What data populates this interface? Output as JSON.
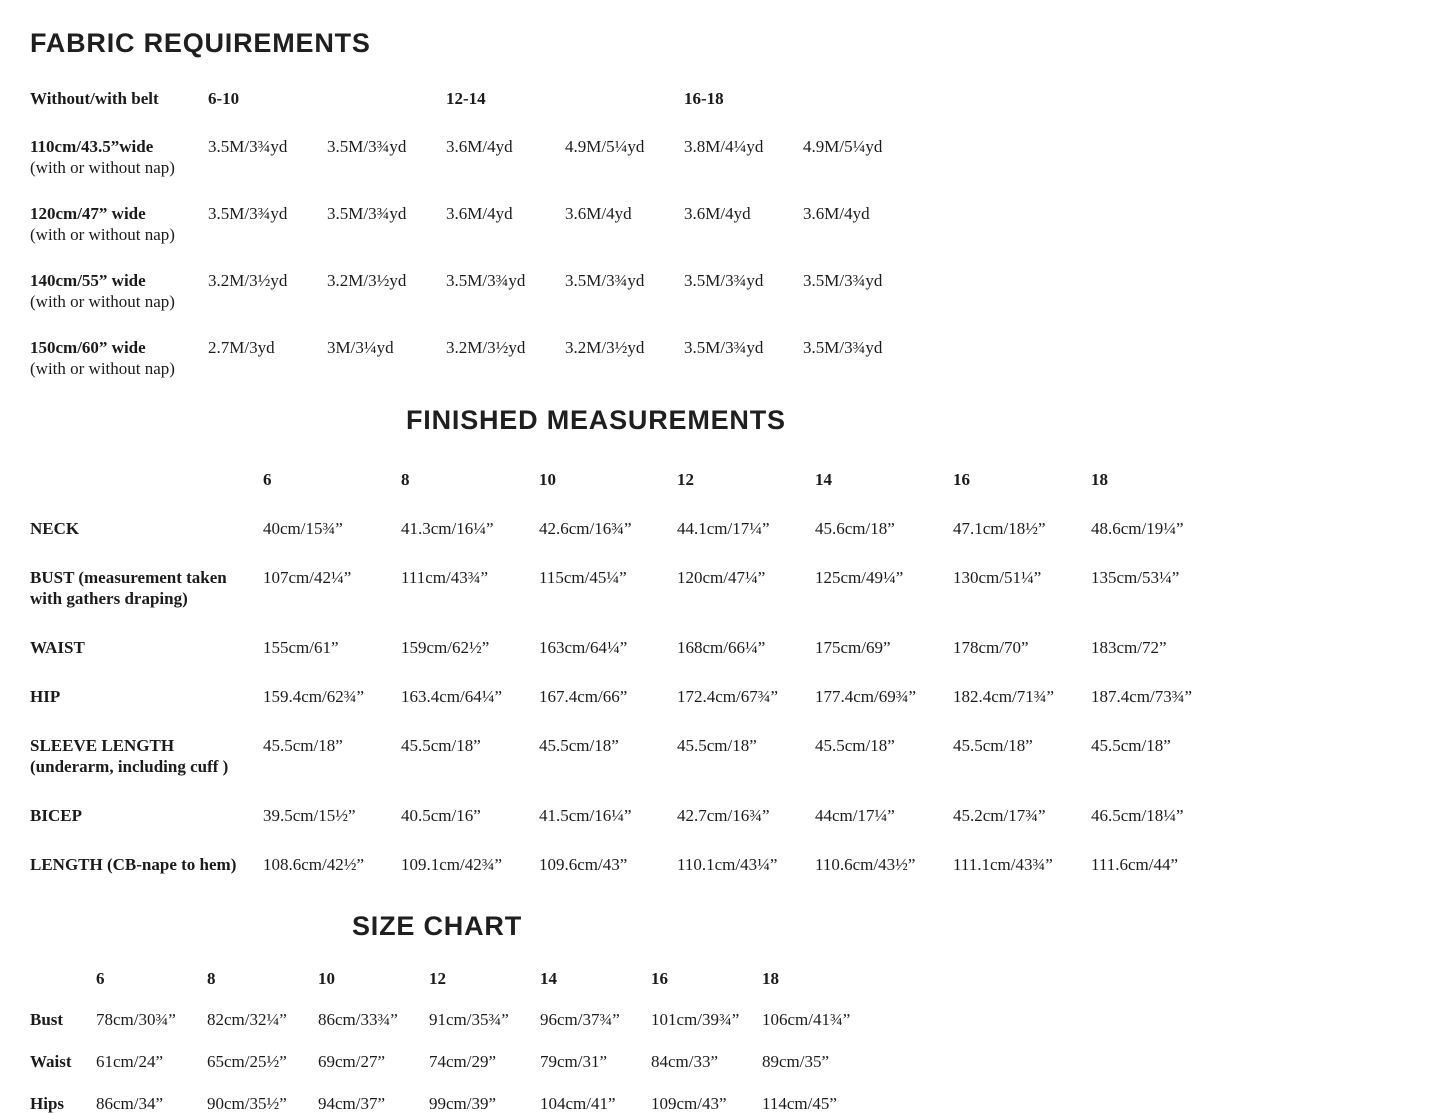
{
  "fabric": {
    "title": "FABRIC REQUIREMENTS",
    "header_label": "Without/with belt",
    "size_groups": [
      "6-10",
      "12-14",
      "16-18"
    ],
    "rows": [
      {
        "label": "110cm/43.5”wide",
        "sublabel": "(with or without nap)",
        "values": [
          "3.5M/3¾yd",
          "3.5M/3¾yd",
          "3.6M/4yd",
          "4.9M/5¼yd",
          "3.8M/4¼yd",
          "4.9M/5¼yd"
        ]
      },
      {
        "label": "120cm/47” wide",
        "sublabel": "(with or without nap)",
        "values": [
          "3.5M/3¾yd",
          "3.5M/3¾yd",
          "3.6M/4yd",
          "3.6M/4yd",
          "3.6M/4yd",
          "3.6M/4yd"
        ]
      },
      {
        "label": "140cm/55” wide",
        "sublabel": "(with or without nap)",
        "values": [
          "3.2M/3½yd",
          "3.2M/3½yd",
          "3.5M/3¾yd",
          "3.5M/3¾yd",
          "3.5M/3¾yd",
          "3.5M/3¾yd"
        ]
      },
      {
        "label": "150cm/60” wide",
        "sublabel": "(with or without nap)",
        "values": [
          "2.7M/3yd",
          "3M/3¼yd",
          "3.2M/3½yd",
          "3.2M/3½yd",
          "3.5M/3¾yd",
          "3.5M/3¾yd"
        ]
      }
    ]
  },
  "finished": {
    "title": "FINISHED MEASUREMENTS",
    "sizes": [
      "6",
      "8",
      "10",
      "12",
      "14",
      "16",
      "18"
    ],
    "rows": [
      {
        "label": "NECK",
        "values": [
          "40cm/15¾”",
          "41.3cm/16¼”",
          "42.6cm/16¾”",
          "44.1cm/17¼”",
          "45.6cm/18”",
          "47.1cm/18½”",
          "48.6cm/19¼”"
        ]
      },
      {
        "label": "BUST (measurement taken\nwith gathers draping)",
        "values": [
          "107cm/42¼”",
          "111cm/43¾”",
          "115cm/45¼”",
          "120cm/47¼”",
          "125cm/49¼”",
          "130cm/51¼”",
          "135cm/53¼”"
        ]
      },
      {
        "label": "WAIST",
        "values": [
          "155cm/61”",
          "159cm/62½”",
          "163cm/64¼”",
          "168cm/66¼”",
          "175cm/69”",
          "178cm/70”",
          "183cm/72”"
        ]
      },
      {
        "label": "HIP",
        "values": [
          "159.4cm/62¾”",
          "163.4cm/64¼”",
          "167.4cm/66”",
          "172.4cm/67¾”",
          "177.4cm/69¾”",
          "182.4cm/71¾”",
          "187.4cm/73¾”"
        ]
      },
      {
        "label": "SLEEVE LENGTH\n(underarm, including cuff )",
        "values": [
          "45.5cm/18”",
          "45.5cm/18”",
          "45.5cm/18”",
          "45.5cm/18”",
          "45.5cm/18”",
          "45.5cm/18”",
          "45.5cm/18”"
        ]
      },
      {
        "label": "BICEP",
        "values": [
          "39.5cm/15½”",
          "40.5cm/16”",
          "41.5cm/16¼”",
          "42.7cm/16¾”",
          "44cm/17¼”",
          "45.2cm/17¾”",
          "46.5cm/18¼”"
        ]
      },
      {
        "label": "LENGTH (CB-nape to hem)",
        "values": [
          "108.6cm/42½”",
          "109.1cm/42¾”",
          "109.6cm/43”",
          "110.1cm/43¼”",
          "110.6cm/43½”",
          "111.1cm/43¾”",
          "111.6cm/44”"
        ]
      }
    ]
  },
  "sizechart": {
    "title": "SIZE CHART",
    "sizes": [
      "6",
      "8",
      "10",
      "12",
      "14",
      "16",
      "18"
    ],
    "rows": [
      {
        "label": "Bust",
        "values": [
          "78cm/30¾”",
          "82cm/32¼”",
          "86cm/33¾”",
          "91cm/35¾”",
          "96cm/37¾”",
          "101cm/39¾”",
          "106cm/41¾”"
        ]
      },
      {
        "label": "Waist",
        "values": [
          "61cm/24”",
          "65cm/25½”",
          "69cm/27”",
          "74cm/29”",
          "79cm/31”",
          "84cm/33”",
          "89cm/35”"
        ]
      },
      {
        "label": "Hips",
        "values": [
          "86cm/34”",
          "90cm/35½”",
          "94cm/37”",
          "99cm/39”",
          "104cm/41”",
          "109cm/43”",
          "114cm/45”"
        ]
      }
    ]
  }
}
